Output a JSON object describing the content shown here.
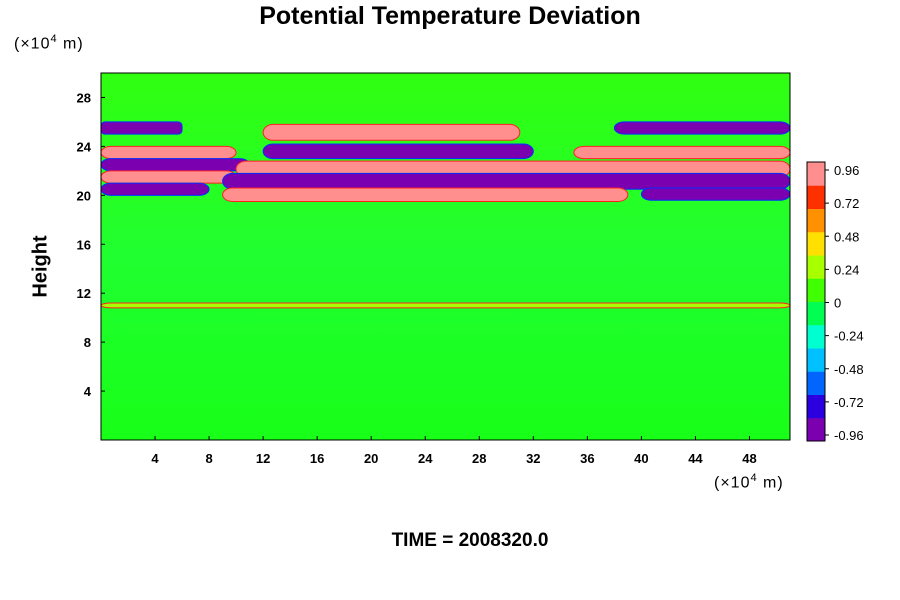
{
  "chart_data": {
    "type": "heatmap",
    "title": "Potential Temperature Deviation",
    "ylabel": "Height",
    "x_unit": {
      "prefix": "(×10",
      "exp": "4",
      "suffix": " m)"
    },
    "y_unit": {
      "prefix": "(×10",
      "exp": "4",
      "suffix": " m)"
    },
    "xlim": [
      0,
      51
    ],
    "ylim": [
      0,
      30
    ],
    "x_ticks": [
      4,
      8,
      12,
      16,
      20,
      24,
      28,
      32,
      36,
      40,
      44,
      48
    ],
    "y_ticks": [
      4,
      8,
      12,
      16,
      20,
      24,
      28
    ],
    "colorbar": {
      "ticks": [
        "0.96",
        "0.72",
        "0.48",
        "0.24",
        "0",
        "-0.24",
        "-0.48",
        "-0.72",
        "-0.96"
      ],
      "range": [
        -0.96,
        0.96
      ],
      "colors": [
        "#7a00b0",
        "#2b00e0",
        "#0066ff",
        "#00c0ff",
        "#00ffd0",
        "#00ff50",
        "#40ff00",
        "#a8ff00",
        "#ffe000",
        "#ff9000",
        "#ff3000",
        "#ff8e8e"
      ]
    },
    "pattern_bands": [
      {
        "y_range": [
          25.0,
          26.0
        ],
        "x_range": [
          0,
          6
        ],
        "value": -0.96
      },
      {
        "y_range": [
          25.0,
          26.0
        ],
        "x_range": [
          38,
          51
        ],
        "value": -0.96
      },
      {
        "y_range": [
          24.5,
          25.8
        ],
        "x_range": [
          12,
          31
        ],
        "value": 0.96
      },
      {
        "y_range": [
          23.0,
          24.0
        ],
        "x_range": [
          0,
          10
        ],
        "value": 0.96
      },
      {
        "y_range": [
          23.0,
          24.2
        ],
        "x_range": [
          12,
          32
        ],
        "value": -0.96
      },
      {
        "y_range": [
          23.0,
          24.0
        ],
        "x_range": [
          35,
          51
        ],
        "value": 0.96
      },
      {
        "y_range": [
          22.0,
          23.0
        ],
        "x_range": [
          0,
          11
        ],
        "value": -0.96
      },
      {
        "y_range": [
          21.5,
          22.8
        ],
        "x_range": [
          10,
          51
        ],
        "value": 0.96
      },
      {
        "y_range": [
          21.0,
          22.0
        ],
        "x_range": [
          0,
          10
        ],
        "value": 0.96
      },
      {
        "y_range": [
          20.5,
          21.8
        ],
        "x_range": [
          9,
          51
        ],
        "value": -0.96
      },
      {
        "y_range": [
          20.0,
          21.0
        ],
        "x_range": [
          0,
          8
        ],
        "value": -0.96
      },
      {
        "y_range": [
          19.5,
          20.6
        ],
        "x_range": [
          9,
          39
        ],
        "value": 0.96
      },
      {
        "y_range": [
          19.6,
          20.6
        ],
        "x_range": [
          40,
          51
        ],
        "value": -0.96
      },
      {
        "y_range": [
          10.8,
          11.2
        ],
        "x_range": [
          0,
          51
        ],
        "value": 0.3
      }
    ],
    "background_value": 0.05
  },
  "footer": {
    "time_label": "TIME = 2008320.0"
  }
}
